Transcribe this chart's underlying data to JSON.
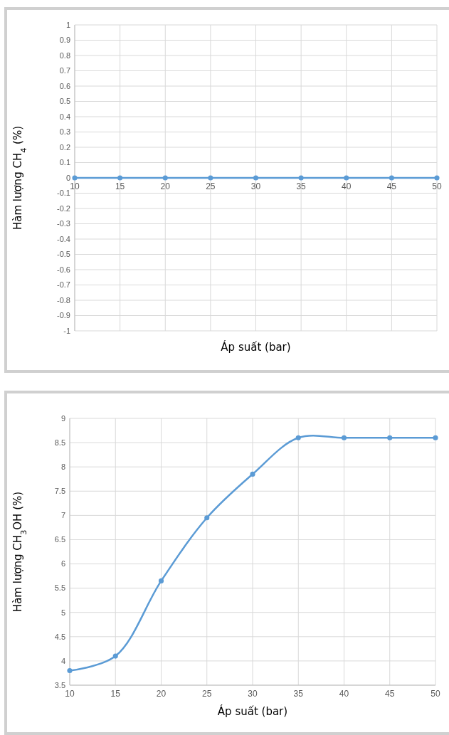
{
  "chart_data": [
    {
      "type": "line",
      "xlabel": "Áp suất (bar)",
      "ylabel": "Hàm lượng CH$_{4}$ (%)",
      "x": [
        10,
        15,
        20,
        25,
        30,
        35,
        40,
        45,
        50
      ],
      "series": [
        {
          "color": "#5b9bd5",
          "values": [
            0,
            0,
            0,
            0,
            0,
            0,
            0,
            0,
            0
          ]
        }
      ],
      "xlim": [
        10,
        50
      ],
      "xticks": [
        10,
        15,
        20,
        25,
        30,
        35,
        40,
        45,
        50
      ],
      "ylim": [
        -1,
        1
      ],
      "yticks": [
        -1,
        -0.9,
        -0.8,
        -0.7,
        -0.6,
        -0.5,
        -0.4,
        -0.3,
        -0.2,
        -0.1,
        0,
        0.1,
        0.2,
        0.3,
        0.4,
        0.5,
        0.6,
        0.7,
        0.8,
        0.9,
        1
      ],
      "grid": true,
      "marker": "circle"
    },
    {
      "type": "line",
      "xlabel": "Áp suất (bar)",
      "ylabel": "Hàm lượng CH$_{3}$OH (%)",
      "x": [
        10,
        15,
        20,
        25,
        30,
        35,
        40,
        45,
        50
      ],
      "series": [
        {
          "color": "#5b9bd5",
          "values": [
            3.8,
            4.1,
            5.65,
            6.95,
            7.85,
            8.6,
            8.6,
            8.6,
            8.6
          ]
        }
      ],
      "xlim": [
        10,
        50
      ],
      "xticks": [
        10,
        15,
        20,
        25,
        30,
        35,
        40,
        45,
        50
      ],
      "ylim": [
        3.5,
        9
      ],
      "yticks": [
        3.5,
        4,
        4.5,
        5,
        5.5,
        6,
        6.5,
        7,
        7.5,
        8,
        8.5,
        9
      ],
      "grid": true,
      "marker": "circle"
    }
  ]
}
